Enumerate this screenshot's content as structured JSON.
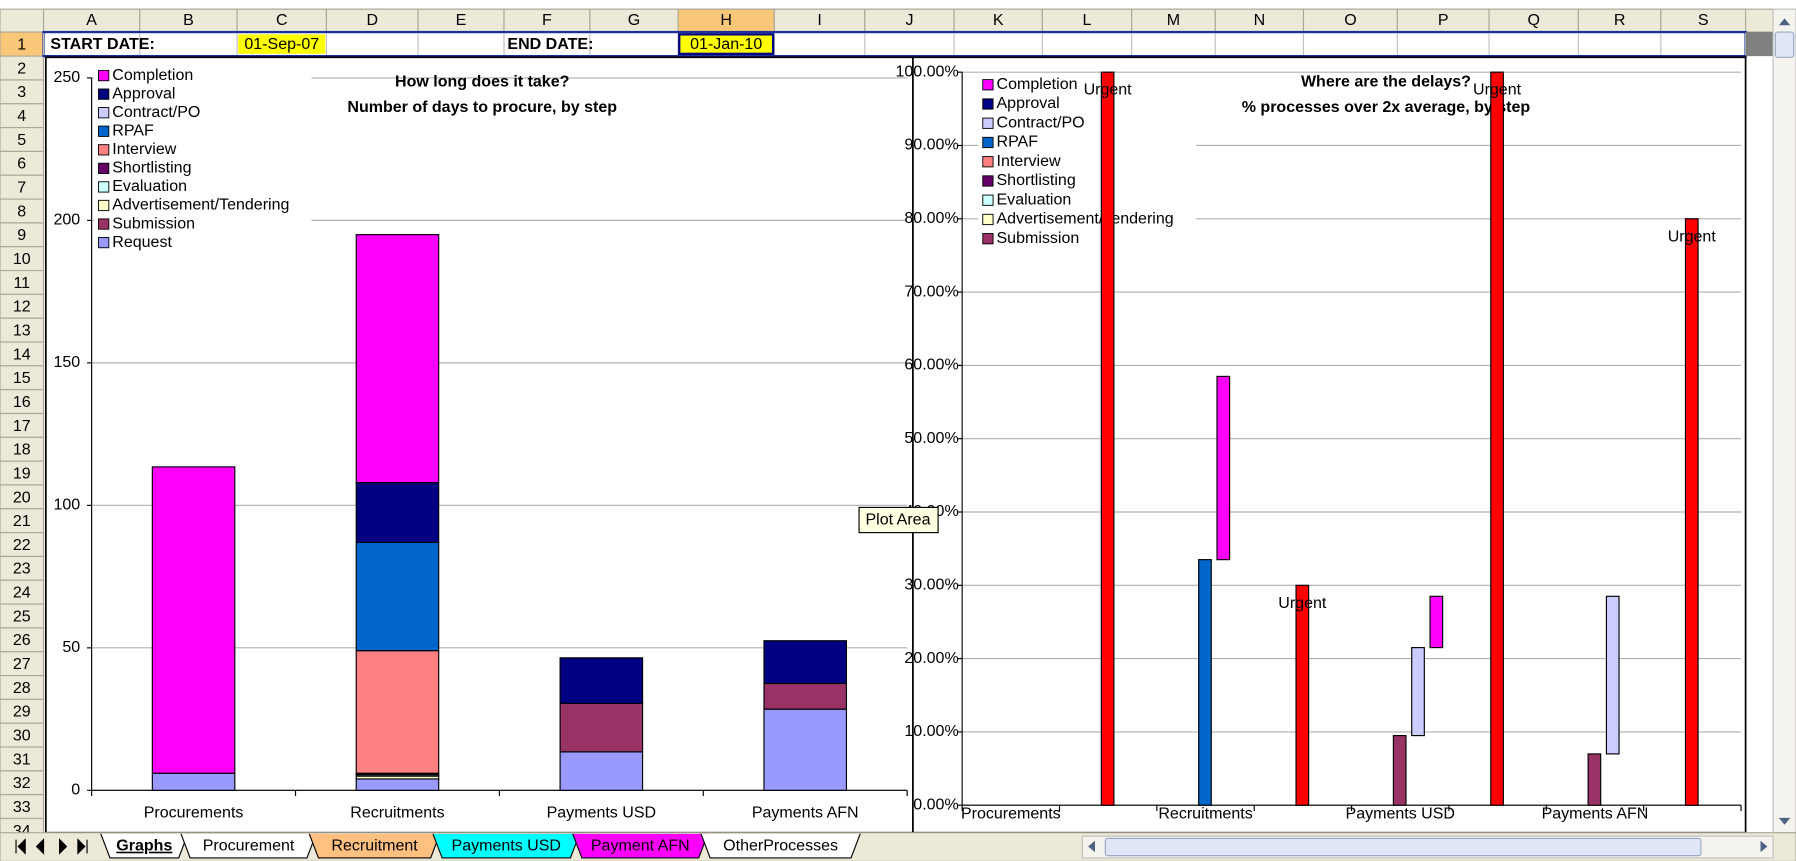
{
  "spreadsheet": {
    "columns": [
      "A",
      "B",
      "C",
      "D",
      "E",
      "F",
      "G",
      "H",
      "I",
      "J",
      "K",
      "L",
      "M",
      "N",
      "O",
      "P",
      "Q",
      "R",
      "S"
    ],
    "rows": [
      1,
      2,
      3,
      4,
      5,
      6,
      7,
      8,
      9,
      10,
      11,
      12,
      13,
      14,
      15,
      16,
      17,
      18,
      19,
      20,
      21,
      22,
      23,
      24,
      25,
      26,
      27,
      28,
      29,
      30,
      31,
      32,
      33,
      34
    ],
    "cells": {
      "A1": "START DATE:",
      "C1": "01-Sep-07",
      "F1": "END DATE:",
      "H1": "01-Jan-10"
    },
    "tabs": [
      {
        "name": "Graphs",
        "color": "#ffffff"
      },
      {
        "name": "Procurement",
        "color": "#ffffff"
      },
      {
        "name": "Recruitment",
        "color": "#ffc080"
      },
      {
        "name": "Payments USD",
        "color": "#00ffff"
      },
      {
        "name": "Payment AFN",
        "color": "#ff00ff"
      },
      {
        "name": "OtherProcesses",
        "color": "#ffffff"
      }
    ],
    "tooltip": "Plot Area"
  },
  "chart_data": [
    {
      "type": "bar",
      "stacked": true,
      "title": "How long does it take?",
      "subtitle": "Number of days to procure, by step",
      "categories": [
        "Procurements",
        "Recruitments",
        "Payments USD",
        "Payments AFN"
      ],
      "ylim": [
        0,
        250
      ],
      "yticks": [
        0,
        50,
        100,
        150,
        200,
        250
      ],
      "grid": true,
      "legend": "upper left",
      "series": [
        {
          "name": "Completion",
          "color": "#ff00ff",
          "values": [
            107.5,
            87,
            0,
            0
          ]
        },
        {
          "name": "Approval",
          "color": "#000080",
          "values": [
            0,
            21,
            16,
            15
          ]
        },
        {
          "name": "Contract/PO",
          "color": "#ccccff",
          "values": [
            0,
            0,
            0,
            0
          ]
        },
        {
          "name": "RPAF",
          "color": "#0066cc",
          "values": [
            0,
            38,
            0,
            0
          ]
        },
        {
          "name": "Interview",
          "color": "#ff8080",
          "values": [
            0,
            43,
            0,
            0
          ]
        },
        {
          "name": "Shortlisting",
          "color": "#660066",
          "values": [
            0,
            0.5,
            0,
            0
          ]
        },
        {
          "name": "Evaluation",
          "color": "#ccffff",
          "values": [
            0,
            0.5,
            0,
            0
          ]
        },
        {
          "name": "Advertisement/Tendering",
          "color": "#ffffcc",
          "values": [
            0,
            1,
            0,
            0
          ]
        },
        {
          "name": "Submission",
          "color": "#993366",
          "values": [
            0,
            0,
            17,
            9
          ]
        },
        {
          "name": "Request",
          "color": "#9999ff",
          "values": [
            6,
            4,
            13.5,
            28.5
          ]
        }
      ]
    },
    {
      "type": "bar",
      "stacked": true,
      "title": "Where are the delays?",
      "subtitle": "% processes over 2x average, by step",
      "categories": [
        "Procurements",
        null,
        "Recruitments",
        null,
        "Payments USD",
        null,
        "Payments AFN",
        null
      ],
      "ylim": [
        0,
        100
      ],
      "yticks": [
        {
          "value": 0,
          "label": "0.00%"
        },
        {
          "value": 10,
          "label": "10.00%"
        },
        {
          "value": 20,
          "label": "20.00%"
        },
        {
          "value": 30,
          "label": "30.00%"
        },
        {
          "value": 40,
          "label": "40.00%"
        },
        {
          "value": 50,
          "label": "50.00%"
        },
        {
          "value": 60,
          "label": "60.00%"
        },
        {
          "value": 70,
          "label": "70.00%"
        },
        {
          "value": 80,
          "label": "80.00%"
        },
        {
          "value": 90,
          "label": "90.00%"
        },
        {
          "value": 100,
          "label": "100.00%"
        }
      ],
      "grid": true,
      "legend": "upper left",
      "series": [
        {
          "name": "Completion",
          "color": "#ff00ff",
          "values": [
            null,
            null,
            25,
            null,
            7,
            null,
            null,
            null
          ]
        },
        {
          "name": "Approval",
          "color": "#000080",
          "values": [
            null,
            null,
            null,
            null,
            null,
            null,
            null,
            null
          ]
        },
        {
          "name": "Contract/PO",
          "color": "#ccccff",
          "values": [
            null,
            null,
            null,
            null,
            12,
            null,
            21.5,
            null
          ]
        },
        {
          "name": "RPAF",
          "color": "#0066cc",
          "values": [
            null,
            null,
            33.5,
            null,
            null,
            null,
            null,
            null
          ]
        },
        {
          "name": "Interview",
          "color": "#ff8080",
          "values": [
            null,
            null,
            null,
            null,
            null,
            null,
            null,
            null
          ]
        },
        {
          "name": "Shortlisting",
          "color": "#660066",
          "values": [
            null,
            null,
            null,
            null,
            null,
            null,
            null,
            null
          ]
        },
        {
          "name": "Evaluation",
          "color": "#ccffff",
          "values": [
            null,
            null,
            null,
            null,
            null,
            null,
            null,
            null
          ]
        },
        {
          "name": "Advertisement/Tendering",
          "color": "#ffffcc",
          "values": [
            null,
            null,
            null,
            null,
            null,
            null,
            null,
            null
          ]
        },
        {
          "name": "Submission",
          "color": "#993366",
          "values": [
            null,
            null,
            null,
            null,
            9.5,
            null,
            7,
            null
          ]
        },
        {
          "name": "Urgent",
          "color": "#ff0000",
          "legend": false,
          "name_labels": true,
          "values": [
            null,
            100,
            null,
            30,
            null,
            100,
            null,
            80
          ]
        }
      ]
    }
  ]
}
